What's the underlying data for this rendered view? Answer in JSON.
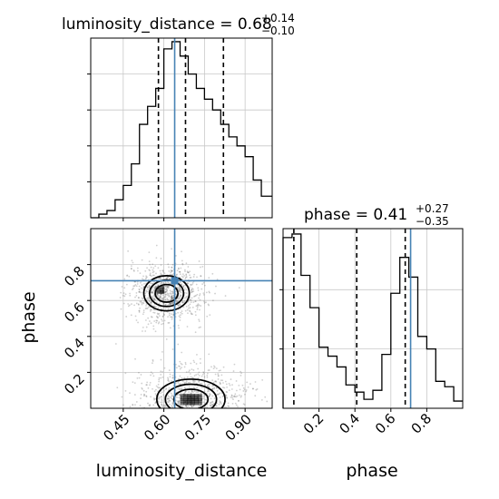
{
  "chart_data": [
    {
      "type": "histogram",
      "panel": "top-left",
      "title": {
        "prefix": "luminosity_distance = ",
        "median": "0.68",
        "upper": "+0.14",
        "lower": "−0.10"
      },
      "xlim": [
        0.33,
        1.0
      ],
      "bins": [
        0.33,
        0.36,
        0.39,
        0.42,
        0.45,
        0.48,
        0.51,
        0.54,
        0.57,
        0.6,
        0.63,
        0.66,
        0.69,
        0.72,
        0.75,
        0.78,
        0.81,
        0.84,
        0.87,
        0.9,
        0.93,
        0.96,
        1.0
      ],
      "counts": [
        0.0,
        0.02,
        0.04,
        0.1,
        0.18,
        0.3,
        0.52,
        0.62,
        0.72,
        0.94,
        0.98,
        0.9,
        0.8,
        0.72,
        0.66,
        0.6,
        0.52,
        0.45,
        0.4,
        0.34,
        0.21,
        0.12
      ],
      "quantiles": [
        0.58,
        0.68,
        0.82
      ],
      "truth": 0.64
    },
    {
      "type": "histogram",
      "panel": "bottom-right",
      "title": {
        "prefix": "phase = ",
        "median": "0.41",
        "upper": "+0.27",
        "lower": "−0.35"
      },
      "xlim": [
        0.0,
        1.0
      ],
      "xticks": [
        "0.2",
        "0.4",
        "0.6",
        "0.8"
      ],
      "xlabel": "phase",
      "bins": [
        0.0,
        0.05,
        0.1,
        0.15,
        0.2,
        0.25,
        0.3,
        0.35,
        0.4,
        0.45,
        0.5,
        0.55,
        0.6,
        0.65,
        0.7,
        0.75,
        0.8,
        0.85,
        0.9,
        0.95,
        1.0
      ],
      "counts": [
        0.95,
        0.97,
        0.74,
        0.56,
        0.34,
        0.29,
        0.23,
        0.13,
        0.09,
        0.05,
        0.1,
        0.3,
        0.64,
        0.84,
        0.73,
        0.4,
        0.33,
        0.15,
        0.12,
        0.04
      ],
      "quantiles": [
        0.06,
        0.41,
        0.68
      ],
      "truth": 0.71
    },
    {
      "type": "scatter_contour",
      "panel": "bottom-left",
      "xlabel": "luminosity_distance",
      "ylabel": "phase",
      "xlim": [
        0.33,
        1.0
      ],
      "ylim": [
        0.0,
        1.0
      ],
      "xticks": [
        "0.45",
        "0.60",
        "0.75",
        "0.90"
      ],
      "yticks": [
        "0.2",
        "0.4",
        "0.6",
        "0.8"
      ],
      "truth": {
        "x": 0.64,
        "y": 0.71
      },
      "modes": [
        {
          "cx": 0.61,
          "cy": 0.64,
          "sx": 0.06,
          "sy": 0.07,
          "levels": [
            0.11,
            0.07,
            0.05
          ],
          "core": [
            0.57,
            0.6,
            0.64,
            0.68
          ]
        },
        {
          "cx": 0.7,
          "cy": 0.05,
          "sx": 0.09,
          "sy": 0.08,
          "levels": [
            0.12,
            0.08,
            0.05
          ],
          "core": [
            0.66,
            0.74,
            0.02,
            0.08
          ]
        }
      ]
    }
  ],
  "colors": {
    "hist_line": "#000000",
    "truth_line": "#4682b4",
    "grid": "#c8c8c8",
    "scatter_dot": "#555555",
    "density": "#000000"
  }
}
